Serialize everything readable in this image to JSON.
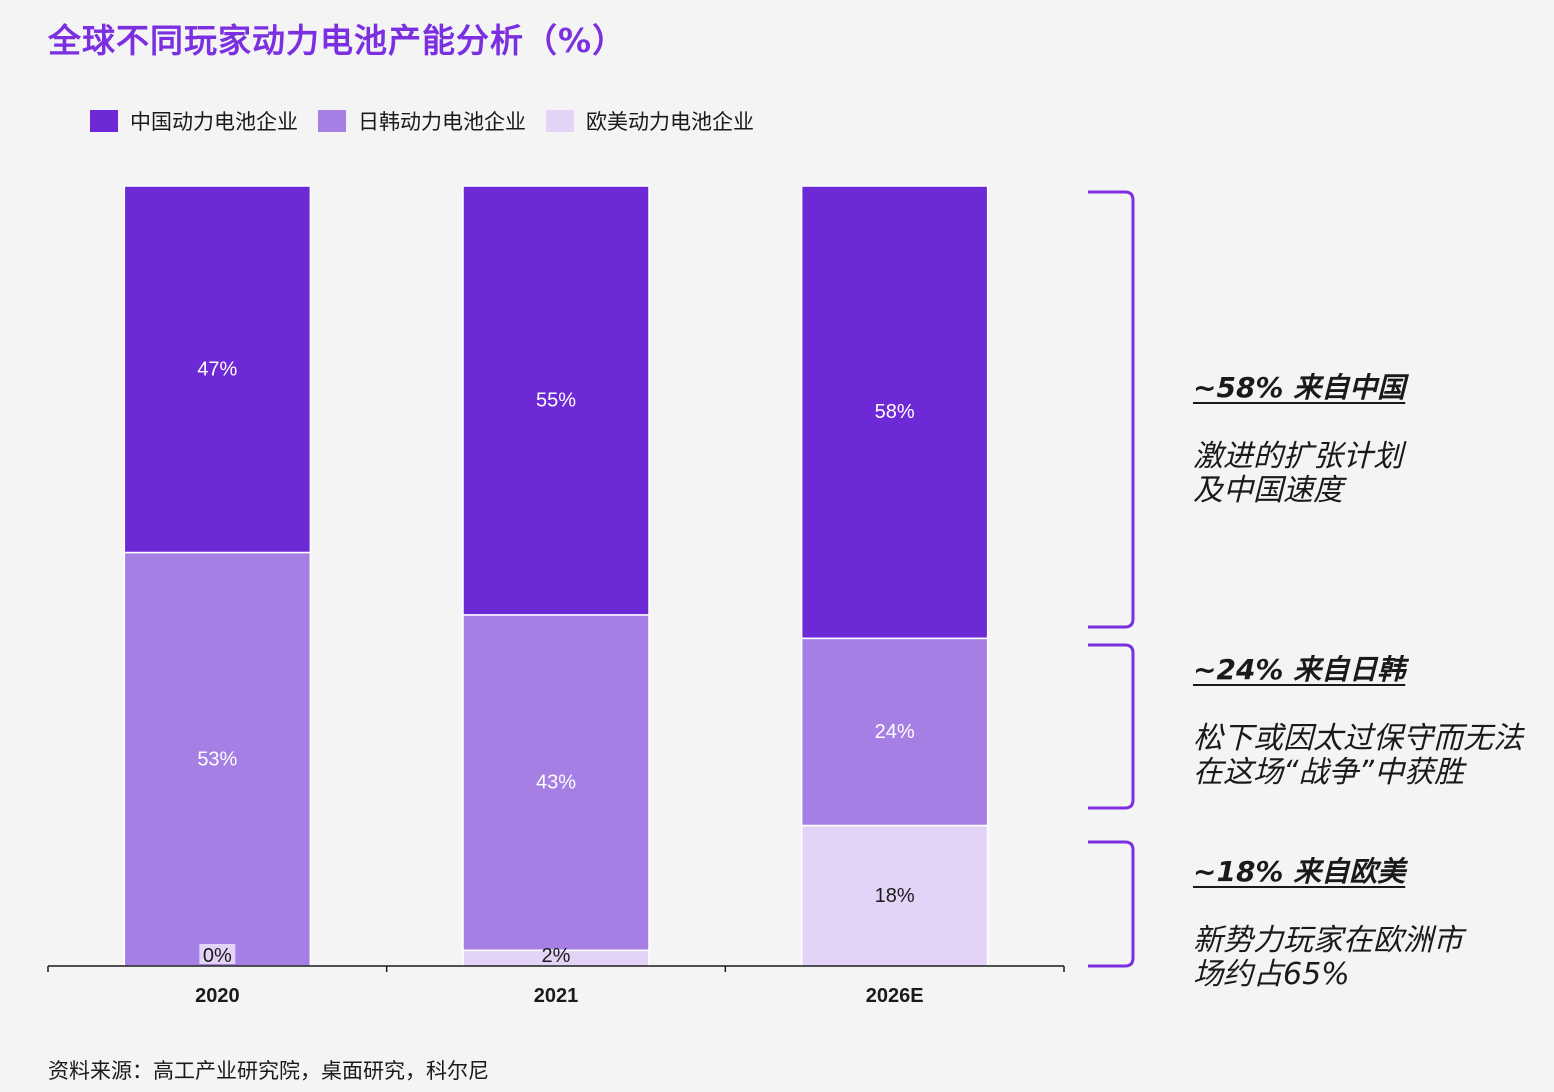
{
  "title": "全球不同玩家动力电池产能分析（%）",
  "legend": [
    {
      "label": "中国动力电池企业",
      "color": "#6e29d6"
    },
    {
      "label": "日韩动力电池企业",
      "color": "#a67fe4"
    },
    {
      "label": "欧美动力电池企业",
      "color": "#e3d4f7"
    }
  ],
  "chart_data": {
    "type": "bar",
    "stacked": true,
    "categories": [
      "2020",
      "2021",
      "2026E"
    ],
    "series": [
      {
        "name": "中国动力电池企业",
        "values": [
          47,
          55,
          58
        ],
        "labels": [
          "47%",
          "55%",
          "58%"
        ],
        "color": "#6e29d6"
      },
      {
        "name": "日韩动力电池企业",
        "values": [
          53,
          43,
          24
        ],
        "labels": [
          "53%",
          "43%",
          "24%"
        ],
        "color": "#a67fe4"
      },
      {
        "name": "欧美动力电池企业",
        "values": [
          0,
          2,
          18
        ],
        "labels": [
          "0%",
          "2%",
          "18%"
        ],
        "color": "#e3d4f7"
      }
    ],
    "ylim": [
      0,
      100
    ]
  },
  "annotations": [
    {
      "head": "~58% 来自中国",
      "lines": [
        "激进的扩张计划",
        "及中国速度"
      ]
    },
    {
      "head": "~24% 来自日韩",
      "lines": [
        "松下或因太过保守而无法",
        "在这场“战争”中获胜"
      ]
    },
    {
      "head": "~18% 来自欧美",
      "lines": [
        "新势力玩家在欧洲市",
        "场约占65%"
      ]
    }
  ],
  "bracket_color": "#7b2fe0",
  "source": "资料来源：高工产业研究院，桌面研究，科尔尼"
}
